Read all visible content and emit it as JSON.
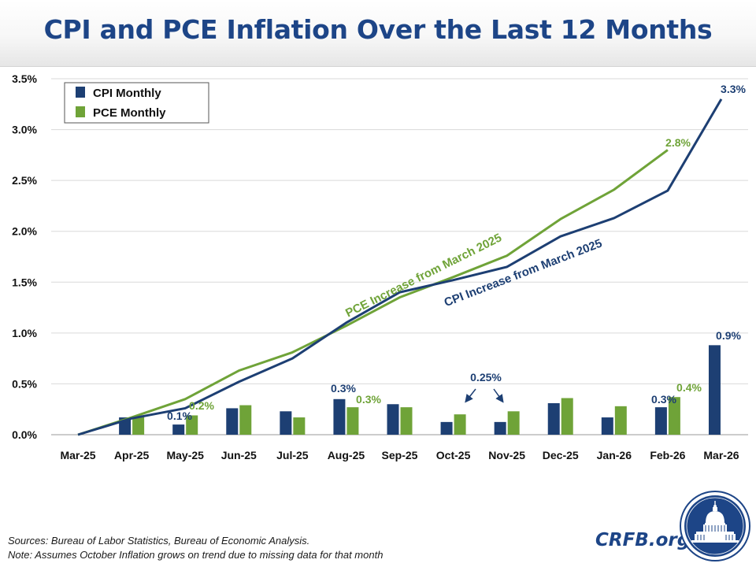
{
  "title": "CPI and PCE Inflation Over the Last 12 Months",
  "footer": {
    "source_line": "Sources: Bureau of Labor Statistics, Bureau of Economic Analysis.",
    "note_line": "Note: Assumes October Inflation grows on trend due to missing data for that month",
    "brand": "CRFB.org",
    "logo_icon": "capitol-dome-seal-icon"
  },
  "colors": {
    "cpi": "#1d3f73",
    "pce": "#6fa338",
    "title": "#1d4587",
    "grid": "#d9d9d9"
  },
  "chart_data": {
    "type": "bar",
    "categories": [
      "Mar-25",
      "Apr-25",
      "May-25",
      "Jun-25",
      "Jul-25",
      "Aug-25",
      "Sep-25",
      "Oct-25",
      "Nov-25",
      "Dec-25",
      "Jan-26",
      "Feb-26",
      "Mar-26"
    ],
    "ylim": [
      0,
      3.5
    ],
    "yticks": [
      "0.0%",
      "0.5%",
      "1.0%",
      "1.5%",
      "2.0%",
      "2.5%",
      "3.0%",
      "3.5%"
    ],
    "grid": true,
    "legend_position": "top-left",
    "legend": [
      "CPI Monthly",
      "PCE Monthly"
    ],
    "series": [
      {
        "name": "CPI Monthly",
        "kind": "bar",
        "values": [
          null,
          0.17,
          0.1,
          0.26,
          0.23,
          0.35,
          0.3,
          0.125,
          0.125,
          0.31,
          0.17,
          0.27,
          0.88
        ]
      },
      {
        "name": "PCE Monthly",
        "kind": "bar",
        "values": [
          null,
          0.18,
          0.19,
          0.29,
          0.17,
          0.27,
          0.27,
          0.2,
          0.23,
          0.36,
          0.28,
          0.37,
          null
        ]
      },
      {
        "name": "CPI Increase from March 2025",
        "kind": "line",
        "values": [
          0,
          0.16,
          0.26,
          0.52,
          0.75,
          1.1,
          1.4,
          1.52,
          1.65,
          1.95,
          2.13,
          2.4,
          3.3
        ]
      },
      {
        "name": "PCE Increase from March 2025",
        "kind": "line",
        "values": [
          0,
          0.17,
          0.35,
          0.63,
          0.81,
          1.07,
          1.35,
          1.55,
          1.76,
          2.12,
          2.41,
          2.8,
          null
        ]
      }
    ],
    "line_labels": [
      {
        "text": "CPI Increase from March 2025",
        "series": "cpi"
      },
      {
        "text": "PCE Increase from March 2025",
        "series": "pce"
      }
    ],
    "data_labels": [
      {
        "text": "0.1%",
        "series": "cpi",
        "index": 2
      },
      {
        "text": "0.2%",
        "series": "pce",
        "index": 2
      },
      {
        "text": "0.3%",
        "series": "cpi",
        "index": 5
      },
      {
        "text": "0.3%",
        "series": "pce",
        "index": 5
      },
      {
        "text": "0.3%",
        "series": "cpi",
        "index": 11
      },
      {
        "text": "0.4%",
        "series": "pce",
        "index": 11
      },
      {
        "text": "0.9%",
        "series": "cpi",
        "index": 12
      },
      {
        "text": "2.8%",
        "series": "pce",
        "index": 11
      },
      {
        "text": "3.3%",
        "series": "cpi",
        "index": 12
      }
    ],
    "annotation": {
      "text": "0.25%",
      "points_to": [
        "Oct-25",
        "Nov-25"
      ]
    }
  }
}
